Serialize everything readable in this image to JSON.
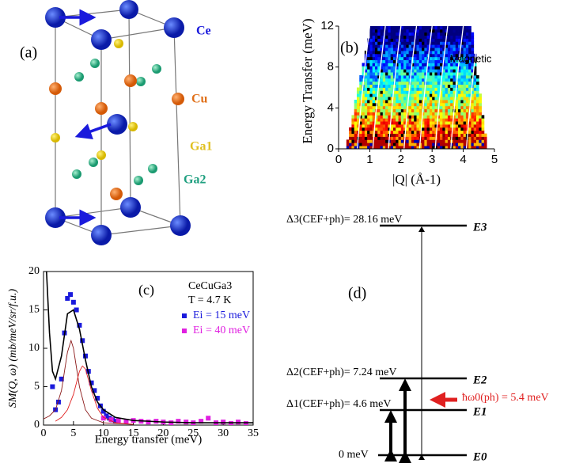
{
  "structure": {
    "panel_label": "(a)",
    "atoms": [
      "Ce",
      "Cu",
      "Ga1",
      "Ga2"
    ]
  },
  "chart_data": [
    {
      "type": "heatmap",
      "panel_label": "(b)",
      "annotation": "Magnetic",
      "x_label": "|Q| (Å-1)",
      "y_label": "Energy Transfer (meV)",
      "xlim": [
        0,
        5
      ],
      "xticks": [
        0,
        1,
        2,
        3,
        4,
        5
      ],
      "ylim": [
        0,
        12
      ],
      "yticks": [
        0,
        4,
        8,
        12
      ]
    },
    {
      "type": "scatter",
      "panel_label": "(c)",
      "annotations": [
        "CeCuGa3",
        "T = 4.7 K"
      ],
      "x_label": "Energy transfer (meV)",
      "y_label": "SM(Q, ω) (mb/meV/sr/f.u.)",
      "xlim": [
        0,
        35
      ],
      "xticks": [
        0,
        5,
        10,
        15,
        20,
        25,
        30,
        35
      ],
      "ylim": [
        0,
        20
      ],
      "yticks": [
        0,
        5,
        10,
        15,
        20
      ],
      "series": [
        {
          "name": "Ei = 15 meV",
          "color": "#1a1adc",
          "marker": "square",
          "x": [
            1.5,
            2,
            2.5,
            3,
            3.5,
            4,
            4.5,
            5,
            5.5,
            6,
            6.5,
            7,
            7.5,
            8,
            8.5,
            9,
            9.5,
            10,
            10.5,
            11,
            11.5,
            12
          ],
          "values": [
            5,
            2,
            3,
            6,
            12,
            16.5,
            17,
            16,
            15,
            13,
            11,
            9,
            7,
            5.5,
            4.5,
            3.5,
            2.5,
            1.8,
            1.2,
            0.9,
            0.7,
            0.5
          ]
        },
        {
          "name": "Ei = 40 meV",
          "color": "#e020e0",
          "marker": "square",
          "x": [
            10,
            11.3,
            12.5,
            13.8,
            15,
            16.3,
            17.5,
            18.8,
            20,
            21.3,
            22.5,
            23.8,
            25,
            26.3,
            27.5,
            28.8,
            30,
            31.3,
            32.5,
            33.8
          ],
          "values": [
            0.9,
            0.7,
            0.6,
            0.5,
            0.6,
            0.5,
            0.4,
            0.5,
            0.4,
            0.3,
            0.5,
            0.4,
            0.3,
            0.5,
            0.9,
            0.3,
            0.4,
            0.2,
            0.4,
            0.2
          ]
        },
        {
          "color": "#000000",
          "marker": "none",
          "x": [
            0.5,
            1,
            1.5,
            2,
            3,
            4,
            5,
            6,
            7,
            8,
            9,
            10,
            12,
            15,
            20,
            25,
            30,
            35
          ],
          "values": [
            20,
            12,
            7,
            6,
            9,
            14.5,
            15,
            12.5,
            8.5,
            5,
            3,
            2,
            1,
            0.6,
            0.4,
            0.3,
            0.3,
            0.3
          ]
        },
        {
          "color": "#8b1a1a",
          "marker": "none",
          "x": [
            0,
            1,
            2,
            3,
            4,
            4.6,
            5,
            6,
            7,
            8,
            10,
            15
          ],
          "values": [
            0.8,
            1.2,
            2,
            4.5,
            9.5,
            11,
            10,
            5,
            2,
            0.9,
            0.3,
            0.1
          ]
        },
        {
          "color": "#e02020",
          "marker": "none",
          "x": [
            2,
            3,
            4,
            5,
            6,
            6.5,
            7,
            8,
            9,
            10,
            12,
            15
          ],
          "values": [
            0.5,
            1,
            2,
            4,
            7,
            7.7,
            7.3,
            4.5,
            2.2,
            1,
            0.3,
            0.1
          ]
        }
      ]
    }
  ],
  "levels": {
    "panel_label": "(d)",
    "levels": [
      {
        "label": "Δ3(CEF+ph)= 28.16 meV",
        "state": "E3"
      },
      {
        "label": "Δ2(CEF+ph)= 7.24 meV",
        "state": "E2"
      },
      {
        "label": "Δ1(CEF+ph)= 4.6 meV",
        "state": "E1"
      },
      {
        "label": "0 meV",
        "state": "E0"
      }
    ],
    "phonon": "ħω0(ph) = 5.4 meV"
  }
}
